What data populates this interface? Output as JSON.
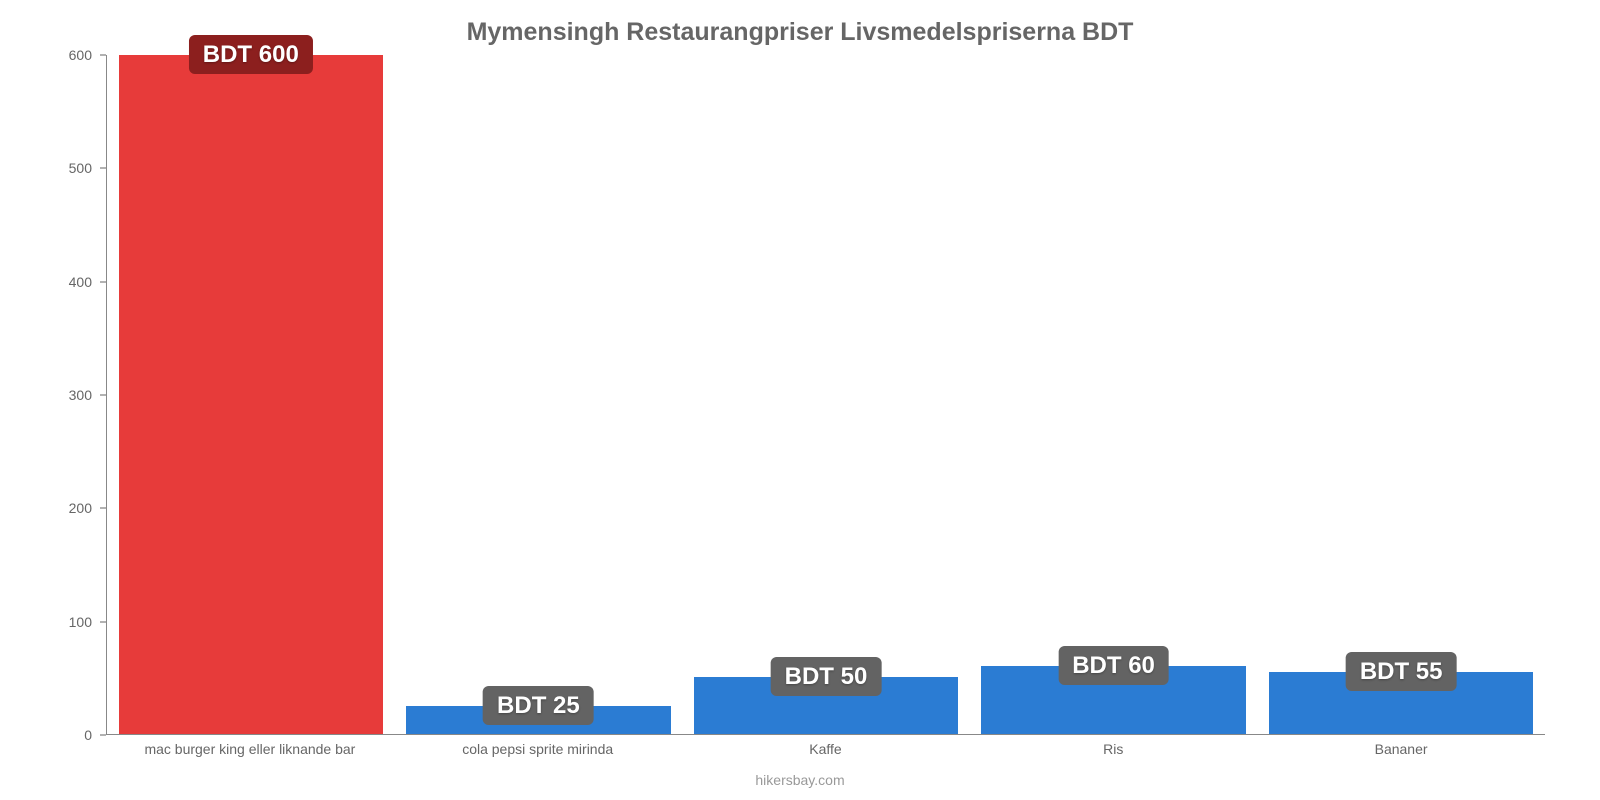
{
  "chart": {
    "type": "bar",
    "title": "Mymensingh Restaurangpriser Livsmedelspriserna BDT",
    "title_color": "#666666",
    "title_fontsize": 25,
    "background_color": "#ffffff",
    "axis_color": "#888888",
    "tick_label_color": "#666666",
    "tick_label_fontsize": 14,
    "x_label_fontsize": 14,
    "bar_width_pct": 92,
    "ylim": [
      0,
      600
    ],
    "ytick_step": 100,
    "yticks": [
      0,
      100,
      200,
      300,
      400,
      500,
      600
    ],
    "categories": [
      "mac burger king eller liknande bar",
      "cola pepsi sprite mirinda",
      "Kaffe",
      "Ris",
      "Bananer"
    ],
    "values": [
      600,
      25,
      50,
      60,
      55
    ],
    "value_labels": [
      "BDT 600",
      "BDT 25",
      "BDT 50",
      "BDT 60",
      "BDT 55"
    ],
    "bar_colors": [
      "#e73b3a",
      "#2b7cd3",
      "#2b7cd3",
      "#2b7cd3",
      "#2b7cd3"
    ],
    "value_label_bg_colors": [
      "#8c1f1e",
      "#636363",
      "#636363",
      "#636363",
      "#636363"
    ],
    "value_label_color": "#ffffff",
    "value_label_fontsize": 24,
    "attribution": "hikersbay.com",
    "attribution_color": "#999999"
  }
}
